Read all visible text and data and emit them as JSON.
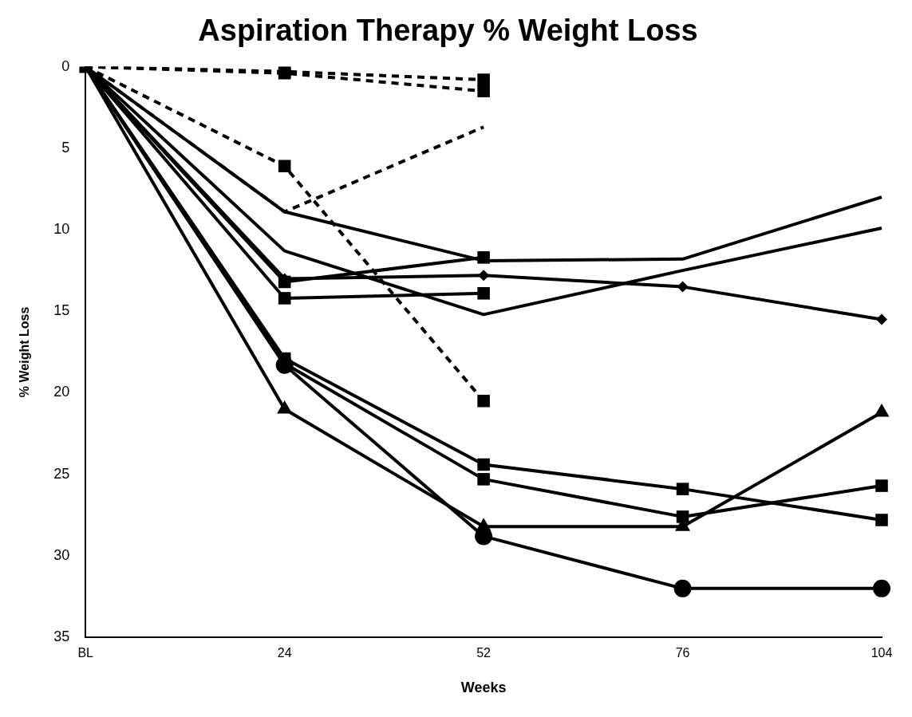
{
  "chart_data": {
    "type": "line",
    "title": "Aspiration Therapy % Weight Loss",
    "xlabel": "Weeks",
    "ylabel": "% Weight Loss",
    "categories": [
      "BL",
      "24",
      "52",
      "76",
      "104"
    ],
    "ylim": [
      35,
      0
    ],
    "yticks": [
      0,
      5,
      10,
      15,
      20,
      25,
      30,
      35
    ],
    "grid": false,
    "legend": false,
    "series": [
      {
        "color": "#000000",
        "line_style": "dashed",
        "marker": "square",
        "values": [
          0,
          0.3,
          0.8,
          null,
          null
        ]
      },
      {
        "color": "#000000",
        "line_style": "dashed",
        "marker": "square",
        "values": [
          0,
          0.4,
          1.5,
          null,
          null
        ]
      },
      {
        "color": "#000000",
        "line_style": "dashed",
        "marker": "none",
        "values": [
          0,
          8.9,
          3.7,
          null,
          null
        ]
      },
      {
        "color": "#000000",
        "line_style": "dashed",
        "marker": "square",
        "values": [
          0,
          6.1,
          20.5,
          null,
          null
        ]
      },
      {
        "color": "#000000",
        "line_style": "solid",
        "marker": "none",
        "values": [
          0,
          8.9,
          11.9,
          11.8,
          8.0
        ]
      },
      {
        "color": "#000000",
        "line_style": "solid",
        "marker": "diamond",
        "values": [
          0,
          13.0,
          12.8,
          13.5,
          15.5
        ]
      },
      {
        "color": "#000000",
        "line_style": "solid",
        "marker": "none",
        "values": [
          0,
          11.3,
          15.2,
          12.5,
          9.9
        ]
      },
      {
        "color": "#000000",
        "line_style": "solid",
        "marker": "square",
        "values": [
          0,
          13.2,
          11.7,
          null,
          null
        ]
      },
      {
        "color": "#000000",
        "line_style": "solid",
        "marker": "square",
        "values": [
          0,
          14.2,
          13.9,
          null,
          null
        ]
      },
      {
        "color": "#000000",
        "line_style": "solid",
        "marker": "square",
        "values": [
          0,
          17.9,
          24.4,
          25.9,
          27.8
        ]
      },
      {
        "color": "#000000",
        "line_style": "solid",
        "marker": "square",
        "values": [
          0,
          18.2,
          25.3,
          27.6,
          25.7
        ]
      },
      {
        "color": "#000000",
        "line_style": "solid",
        "marker": "triangle",
        "values": [
          0,
          21.0,
          28.2,
          28.2,
          21.2
        ]
      },
      {
        "color": "#000000",
        "line_style": "solid",
        "marker": "circle",
        "values": [
          0,
          18.3,
          28.8,
          32.0,
          32.0
        ]
      }
    ]
  }
}
